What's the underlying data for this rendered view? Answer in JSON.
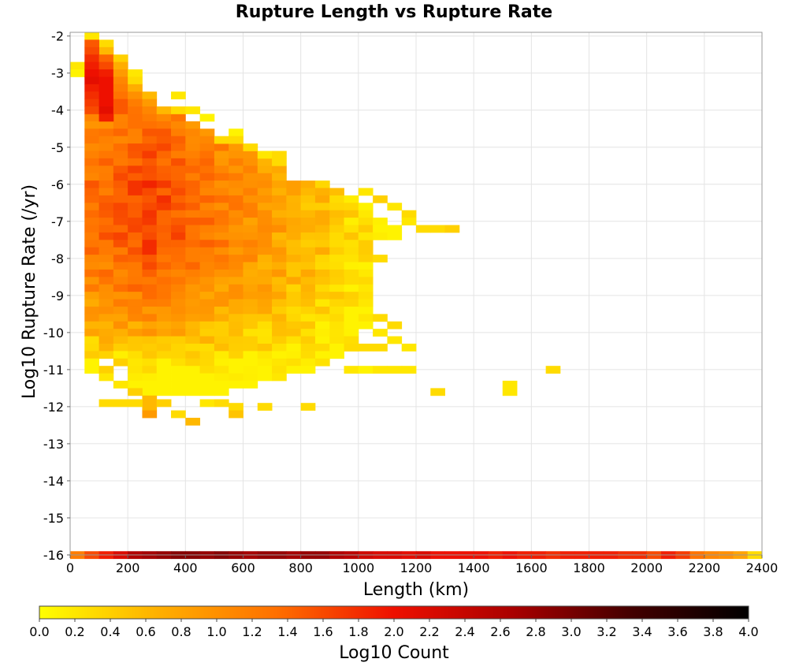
{
  "chart_data": {
    "type": "heatmap",
    "title": "Rupture Length vs Rupture Rate",
    "xlabel": "Length (km)",
    "ylabel": "Log10 Rupture Rate (/yr)",
    "xlim": [
      0,
      2400
    ],
    "ylim": [
      -16,
      -1.9
    ],
    "x_ticks": [
      "0",
      "200",
      "400",
      "600",
      "800",
      "1000",
      "1200",
      "1400",
      "1600",
      "1800",
      "2000",
      "2200",
      "2400"
    ],
    "y_ticks": [
      "-2",
      "-3",
      "-4",
      "-5",
      "-6",
      "-7",
      "-8",
      "-9",
      "-10",
      "-11",
      "-12",
      "-13",
      "-14",
      "-15",
      "-16"
    ],
    "grid": true,
    "bin_width_km": 50,
    "bin_height_log": 0.2,
    "colorbar": {
      "label": "Log10 Count",
      "range": [
        0.0,
        4.0
      ],
      "ticks": [
        "0.0",
        "0.2",
        "0.4",
        "0.6",
        "0.8",
        "1.0",
        "1.2",
        "1.4",
        "1.6",
        "1.8",
        "2.0",
        "2.2",
        "2.4",
        "2.6",
        "2.8",
        "3.0",
        "3.2",
        "3.4",
        "3.6",
        "3.8",
        "4.0"
      ],
      "colors": [
        "#ffff00",
        "#ffb000",
        "#ff7000",
        "#ee1000",
        "#aa0000",
        "#440000",
        "#000000"
      ]
    },
    "cells": [
      [
        75,
        -2.0,
        0.2
      ],
      [
        125,
        -2.2,
        0.3
      ],
      [
        75,
        -2.2,
        1.5
      ],
      [
        125,
        -2.4,
        0.6
      ],
      [
        75,
        -2.4,
        1.6
      ],
      [
        25,
        -2.8,
        0.2
      ],
      [
        25,
        -3.0,
        0.1
      ],
      [
        75,
        -2.6,
        1.8
      ],
      [
        75,
        -2.8,
        1.9
      ],
      [
        75,
        -3.0,
        2.0
      ],
      [
        75,
        -3.2,
        2.1
      ],
      [
        75,
        -3.4,
        1.9
      ],
      [
        75,
        -3.6,
        1.8
      ],
      [
        75,
        -3.8,
        1.7
      ],
      [
        75,
        -4.0,
        1.6
      ],
      [
        125,
        -2.6,
        1.4
      ],
      [
        125,
        -2.8,
        1.6
      ],
      [
        125,
        -3.0,
        1.9
      ],
      [
        125,
        -3.2,
        2.0
      ],
      [
        125,
        -3.4,
        2.0
      ],
      [
        125,
        -3.6,
        2.0
      ],
      [
        125,
        -3.8,
        2.0
      ],
      [
        125,
        -4.0,
        2.1
      ],
      [
        125,
        -4.2,
        1.9
      ],
      [
        175,
        -2.6,
        0.4
      ],
      [
        175,
        -2.8,
        0.7
      ],
      [
        175,
        -3.0,
        0.9
      ],
      [
        175,
        -3.2,
        1.1
      ],
      [
        175,
        -3.4,
        1.2
      ],
      [
        175,
        -3.6,
        1.3
      ],
      [
        175,
        -3.8,
        1.5
      ],
      [
        175,
        -4.0,
        1.5
      ],
      [
        225,
        -3.0,
        0.2
      ],
      [
        225,
        -3.2,
        0.3
      ],
      [
        225,
        -3.4,
        0.7
      ],
      [
        225,
        -3.6,
        1.0
      ],
      [
        225,
        -3.8,
        1.2
      ],
      [
        225,
        -4.0,
        1.3
      ],
      [
        275,
        -3.6,
        0.6
      ],
      [
        275,
        -3.8,
        0.9
      ],
      [
        275,
        -4.0,
        1.1
      ],
      [
        375,
        -3.6,
        0.2
      ],
      [
        325,
        -4.0,
        0.6
      ],
      [
        375,
        -4.0,
        0.3
      ],
      [
        425,
        -4.0,
        0.2
      ],
      [
        475,
        -4.2,
        0.1
      ],
      [
        575,
        -4.6,
        0.1
      ],
      [
        525,
        -4.8,
        0.3
      ],
      [
        575,
        -4.8,
        0.3
      ],
      [
        625,
        -5.0,
        0.3
      ],
      [
        675,
        -5.2,
        0.2
      ],
      [
        725,
        -5.2,
        0.3
      ],
      [
        725,
        -5.4,
        0.3
      ],
      [
        1025,
        -6.2,
        0.2
      ],
      [
        1075,
        -6.4,
        0.4
      ],
      [
        1125,
        -6.6,
        0.2
      ],
      [
        1175,
        -6.8,
        0.3
      ],
      [
        1175,
        -7.0,
        0.2
      ],
      [
        1225,
        -7.2,
        0.3
      ],
      [
        1275,
        -7.2,
        0.3
      ],
      [
        1325,
        -7.2,
        0.4
      ],
      [
        1075,
        -8.0,
        0.3
      ],
      [
        1025,
        -7.4,
        0.2
      ],
      [
        975,
        -8.4,
        0.3
      ],
      [
        975,
        -8.6,
        0.3
      ],
      [
        925,
        -8.6,
        0.4
      ],
      [
        875,
        -8.6,
        0.5
      ],
      [
        1025,
        -9.2,
        0.2
      ],
      [
        1075,
        -9.6,
        0.3
      ],
      [
        1125,
        -9.8,
        0.3
      ],
      [
        1075,
        -10.0,
        0.2
      ],
      [
        1125,
        -10.2,
        0.2
      ],
      [
        1175,
        -10.4,
        0.2
      ],
      [
        975,
        -10.4,
        0.3
      ],
      [
        1025,
        -10.4,
        0.3
      ],
      [
        1075,
        -10.4,
        0.3
      ],
      [
        975,
        -11.0,
        0.2
      ],
      [
        1025,
        -11.0,
        0.1
      ],
      [
        1075,
        -11.0,
        0.2
      ],
      [
        1125,
        -11.0,
        0.2
      ],
      [
        1175,
        -11.0,
        0.2
      ],
      [
        1275,
        -11.6,
        0.3
      ],
      [
        1525,
        -11.4,
        0.2
      ],
      [
        1525,
        -11.6,
        0.2
      ],
      [
        1675,
        -11.0,
        0.3
      ],
      [
        125,
        -11.0,
        0.4
      ],
      [
        125,
        -11.2,
        0.2
      ],
      [
        175,
        -11.4,
        0.2
      ],
      [
        225,
        -11.6,
        0.4
      ],
      [
        275,
        -11.8,
        0.6
      ],
      [
        275,
        -12.0,
        0.6
      ],
      [
        275,
        -12.2,
        0.9
      ],
      [
        125,
        -11.9,
        0.3
      ],
      [
        175,
        -11.9,
        0.3
      ],
      [
        225,
        -11.9,
        0.3
      ],
      [
        325,
        -11.9,
        0.4
      ],
      [
        375,
        -12.2,
        0.3
      ],
      [
        425,
        -12.4,
        0.6
      ],
      [
        475,
        -11.9,
        0.2
      ],
      [
        525,
        -11.9,
        0.3
      ],
      [
        575,
        -12.0,
        0.3
      ],
      [
        575,
        -12.2,
        0.5
      ],
      [
        675,
        -12.0,
        0.3
      ],
      [
        825,
        -12.0,
        0.3
      ],
      [
        25,
        -16.0,
        1.2
      ],
      [
        75,
        -16.0,
        1.6
      ],
      [
        125,
        -16.0,
        1.9
      ],
      [
        175,
        -16.0,
        2.2
      ],
      [
        225,
        -16.0,
        2.6
      ],
      [
        275,
        -16.0,
        2.7
      ],
      [
        325,
        -16.0,
        2.8
      ],
      [
        375,
        -16.0,
        2.9
      ],
      [
        425,
        -16.0,
        2.9
      ],
      [
        475,
        -16.0,
        2.8
      ],
      [
        525,
        -16.0,
        2.9
      ],
      [
        575,
        -16.0,
        2.8
      ],
      [
        625,
        -16.0,
        2.7
      ],
      [
        675,
        -16.0,
        2.8
      ],
      [
        725,
        -16.0,
        2.8
      ],
      [
        775,
        -16.0,
        2.7
      ],
      [
        825,
        -16.0,
        2.8
      ],
      [
        875,
        -16.0,
        2.8
      ],
      [
        925,
        -16.0,
        2.6
      ],
      [
        975,
        -16.0,
        2.5
      ],
      [
        1025,
        -16.0,
        2.3
      ],
      [
        1075,
        -16.0,
        2.2
      ],
      [
        1125,
        -16.0,
        2.2
      ],
      [
        1175,
        -16.0,
        2.1
      ],
      [
        1225,
        -16.0,
        2.2
      ],
      [
        1275,
        -16.0,
        2.0
      ],
      [
        1325,
        -16.0,
        2.0
      ],
      [
        1375,
        -16.0,
        2.0
      ],
      [
        1425,
        -16.0,
        2.0
      ],
      [
        1475,
        -16.0,
        1.9
      ],
      [
        1525,
        -16.0,
        2.0
      ],
      [
        1575,
        -16.0,
        1.9
      ],
      [
        1625,
        -16.0,
        1.9
      ],
      [
        1675,
        -16.0,
        1.8
      ],
      [
        1725,
        -16.0,
        1.9
      ],
      [
        1775,
        -16.0,
        1.9
      ],
      [
        1825,
        -16.0,
        1.9
      ],
      [
        1875,
        -16.0,
        1.9
      ],
      [
        1925,
        -16.0,
        1.8
      ],
      [
        1975,
        -16.0,
        1.8
      ],
      [
        2025,
        -16.0,
        1.6
      ],
      [
        2075,
        -16.0,
        1.9
      ],
      [
        2125,
        -16.0,
        1.7
      ],
      [
        2175,
        -16.0,
        1.3
      ],
      [
        2225,
        -16.0,
        1.1
      ],
      [
        2275,
        -16.0,
        1.0
      ],
      [
        2325,
        -16.0,
        0.8
      ],
      [
        2375,
        -16.0,
        0.3
      ]
    ],
    "band_bins": [
      [
        75,
        -4.2,
        -11.0
      ],
      [
        125,
        -4.4,
        -10.6
      ],
      [
        175,
        -4.2,
        -10.8
      ],
      [
        225,
        -4.2,
        -11.4
      ],
      [
        275,
        -4.2,
        -11.6
      ],
      [
        325,
        -4.2,
        -11.6
      ],
      [
        375,
        -4.2,
        -11.6
      ],
      [
        425,
        -4.4,
        -11.6
      ],
      [
        475,
        -4.6,
        -11.6
      ],
      [
        525,
        -5.0,
        -11.6
      ],
      [
        575,
        -5.0,
        -11.4
      ],
      [
        625,
        -5.2,
        -11.4
      ],
      [
        675,
        -5.4,
        -11.2
      ],
      [
        725,
        -5.6,
        -11.2
      ],
      [
        775,
        -6.0,
        -11.0
      ],
      [
        825,
        -6.0,
        -11.0
      ],
      [
        875,
        -6.0,
        -10.8
      ],
      [
        925,
        -6.2,
        -10.6
      ],
      [
        975,
        -6.4,
        -10.4
      ],
      [
        1025,
        -6.6,
        -9.8
      ],
      [
        1075,
        -7.0,
        -7.4
      ],
      [
        1125,
        -7.2,
        -7.4
      ]
    ]
  }
}
